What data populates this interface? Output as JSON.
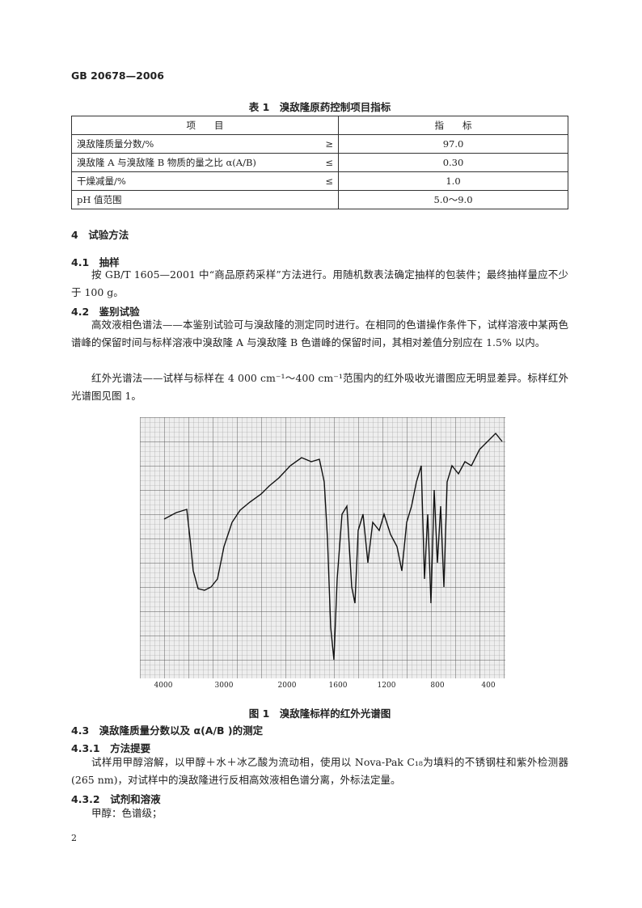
{
  "header": {
    "standard_no": "GB 20678—2006"
  },
  "table1": {
    "caption": "表 1　溴敌隆原药控制项目指标",
    "columns": [
      "项　　目",
      "指　　标"
    ],
    "rows": [
      {
        "item": "溴敌隆质量分数/%",
        "op": "≥",
        "value": "97.0"
      },
      {
        "item": "溴敌隆 A 与溴敌隆 B 物质的量之比 α(A/B)",
        "op": "≤",
        "value": "0.30"
      },
      {
        "item": "干燥减量/%",
        "op": "≤",
        "value": "1.0"
      },
      {
        "item": "pH 值范围",
        "op": "",
        "value": "5.0～9.0"
      }
    ]
  },
  "sections": {
    "s4": "4　试验方法",
    "s41": "4.1　抽样",
    "s41_p": "按 GB/T 1605—2001 中“商品原药采样”方法进行。用随机数表法确定抽样的包装件；最终抽样量应不少于 100 g。",
    "s42": "4.2　鉴别试验",
    "s42_p1": "高效液相色谱法——本鉴别试验可与溴敌隆的测定同时进行。在相同的色谱操作条件下，试样溶液中某两色谱峰的保留时间与标样溶液中溴敌隆 A 与溴敌隆 B 色谱峰的保留时间，其相对差值分别应在 1.5% 以内。",
    "s42_p2": "红外光谱法——试样与标样在 4 000 cm⁻¹～400 cm⁻¹范围内的红外吸收光谱图应无明显差异。标样红外光谱图见图 1。",
    "s43": "4.3　溴敌隆质量分数以及 α(A/B )的测定",
    "s431": "4.3.1　方法提要",
    "s431_p": "试样用甲醇溶解，以甲醇＋水＋冰乙酸为流动相，使用以 Nova-Pak C₁₈为填料的不锈钢柱和紫外检测器(265 nm)，对试样中的溴敌隆进行反相高效液相色谱分离，外标法定量。",
    "s432": "4.3.2　试剂和溶液",
    "s432_p": "甲醇：色谱级；"
  },
  "figure1": {
    "caption": "图 1　溴敌隆标样的红外光谱图",
    "x_ticks": [
      "4000",
      "3000",
      "2000",
      "1600",
      "1200",
      "800",
      "400"
    ]
  },
  "footer": {
    "page_number": "2"
  }
}
